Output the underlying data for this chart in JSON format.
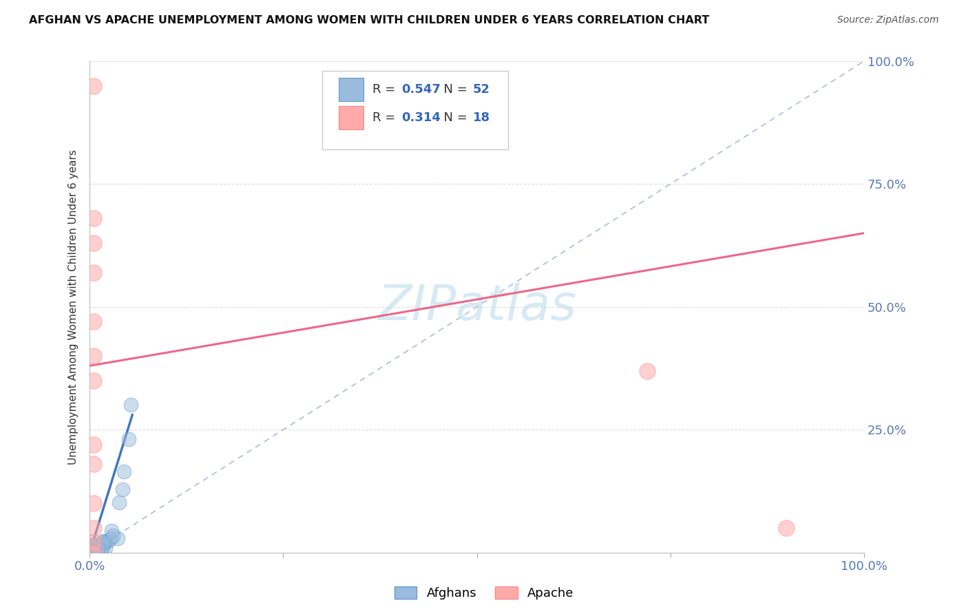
{
  "title": "AFGHAN VS APACHE UNEMPLOYMENT AMONG WOMEN WITH CHILDREN UNDER 6 YEARS CORRELATION CHART",
  "source": "Source: ZipAtlas.com",
  "ylabel": "Unemployment Among Women with Children Under 6 years",
  "xlim": [
    0,
    1.0
  ],
  "ylim": [
    0,
    1.0
  ],
  "afghan_color": "#99BBDD",
  "apache_color": "#FFAAAA",
  "afghan_edge_color": "#6699CC",
  "apache_edge_color": "#FF8888",
  "afghan_trend_color": "#4477BB",
  "apache_trend_color": "#EE6688",
  "diag_color": "#99AACC",
  "grid_color": "#CCCCCC",
  "background_color": "#FFFFFF",
  "watermark_color": "#BBDDEE",
  "tick_color": "#5577BB",
  "axis_label_color": "#333333",
  "title_color": "#111111",
  "source_color": "#555555",
  "afghan_R": "0.547",
  "afghan_N": "52",
  "apache_R": "0.314",
  "apache_N": "18",
  "legend_label_color": "#333333",
  "legend_value_color": "#3366BB",
  "afghans_label": "Afghans",
  "apache_label": "Apache",
  "apache_x": [
    0.005,
    0.005,
    0.005,
    0.005,
    0.005,
    0.005,
    0.005,
    0.005,
    0.005,
    0.005,
    0.005,
    0.005,
    0.005,
    0.72,
    0.9
  ],
  "apache_y": [
    0.95,
    0.68,
    0.63,
    0.57,
    0.47,
    0.4,
    0.35,
    0.22,
    0.18,
    0.1,
    0.05,
    0.02,
    0.0,
    0.37,
    0.05
  ],
  "apache_trend_x0": 0.0,
  "apache_trend_x1": 1.0,
  "apache_trend_y0": 0.38,
  "apache_trend_y1": 0.65,
  "afghan_trend_x0": 0.0,
  "afghan_trend_x1": 0.055,
  "afghan_trend_y0": 0.0,
  "afghan_trend_y1": 0.28,
  "xtick_positions": [
    0.0,
    0.25,
    0.5,
    0.75,
    1.0
  ],
  "xtick_labels": [
    "0.0%",
    "",
    "",
    "",
    "100.0%"
  ],
  "ytick_positions": [
    0.0,
    0.25,
    0.5,
    0.75,
    1.0
  ],
  "ytick_labels": [
    "",
    "25.0%",
    "50.0%",
    "75.0%",
    "100.0%"
  ]
}
